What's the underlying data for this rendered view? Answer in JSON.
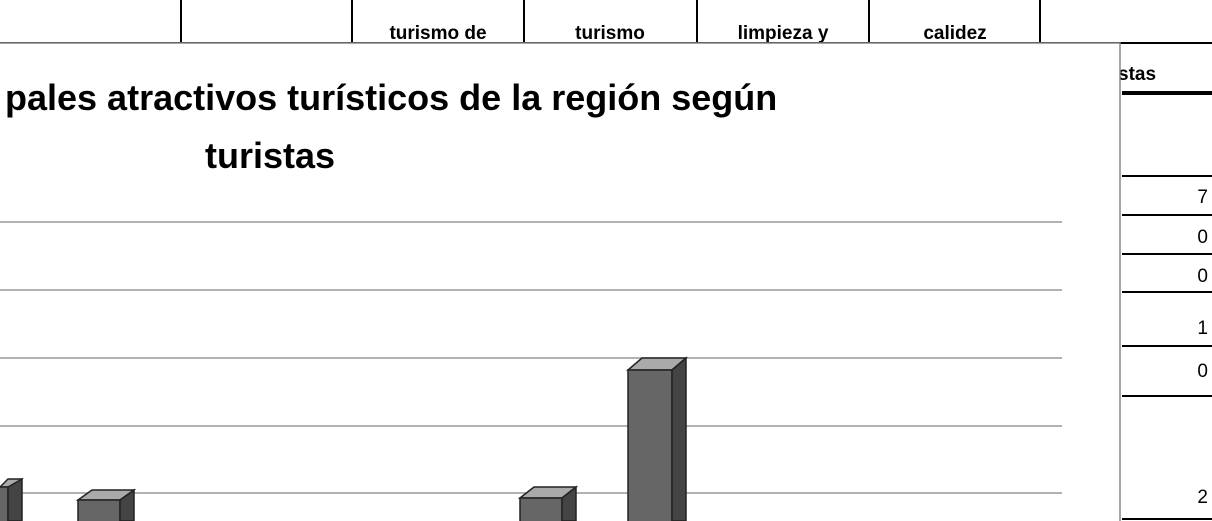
{
  "table": {
    "header": [
      "turismo de",
      "turismo",
      "limpieza y",
      "calidez"
    ],
    "last_header": "stas",
    "values": [
      7,
      0,
      0,
      1,
      0,
      2
    ]
  },
  "chart": {
    "title_lines": [
      "pales atractivos turísticos de la región según",
      "turistas"
    ]
  }
}
